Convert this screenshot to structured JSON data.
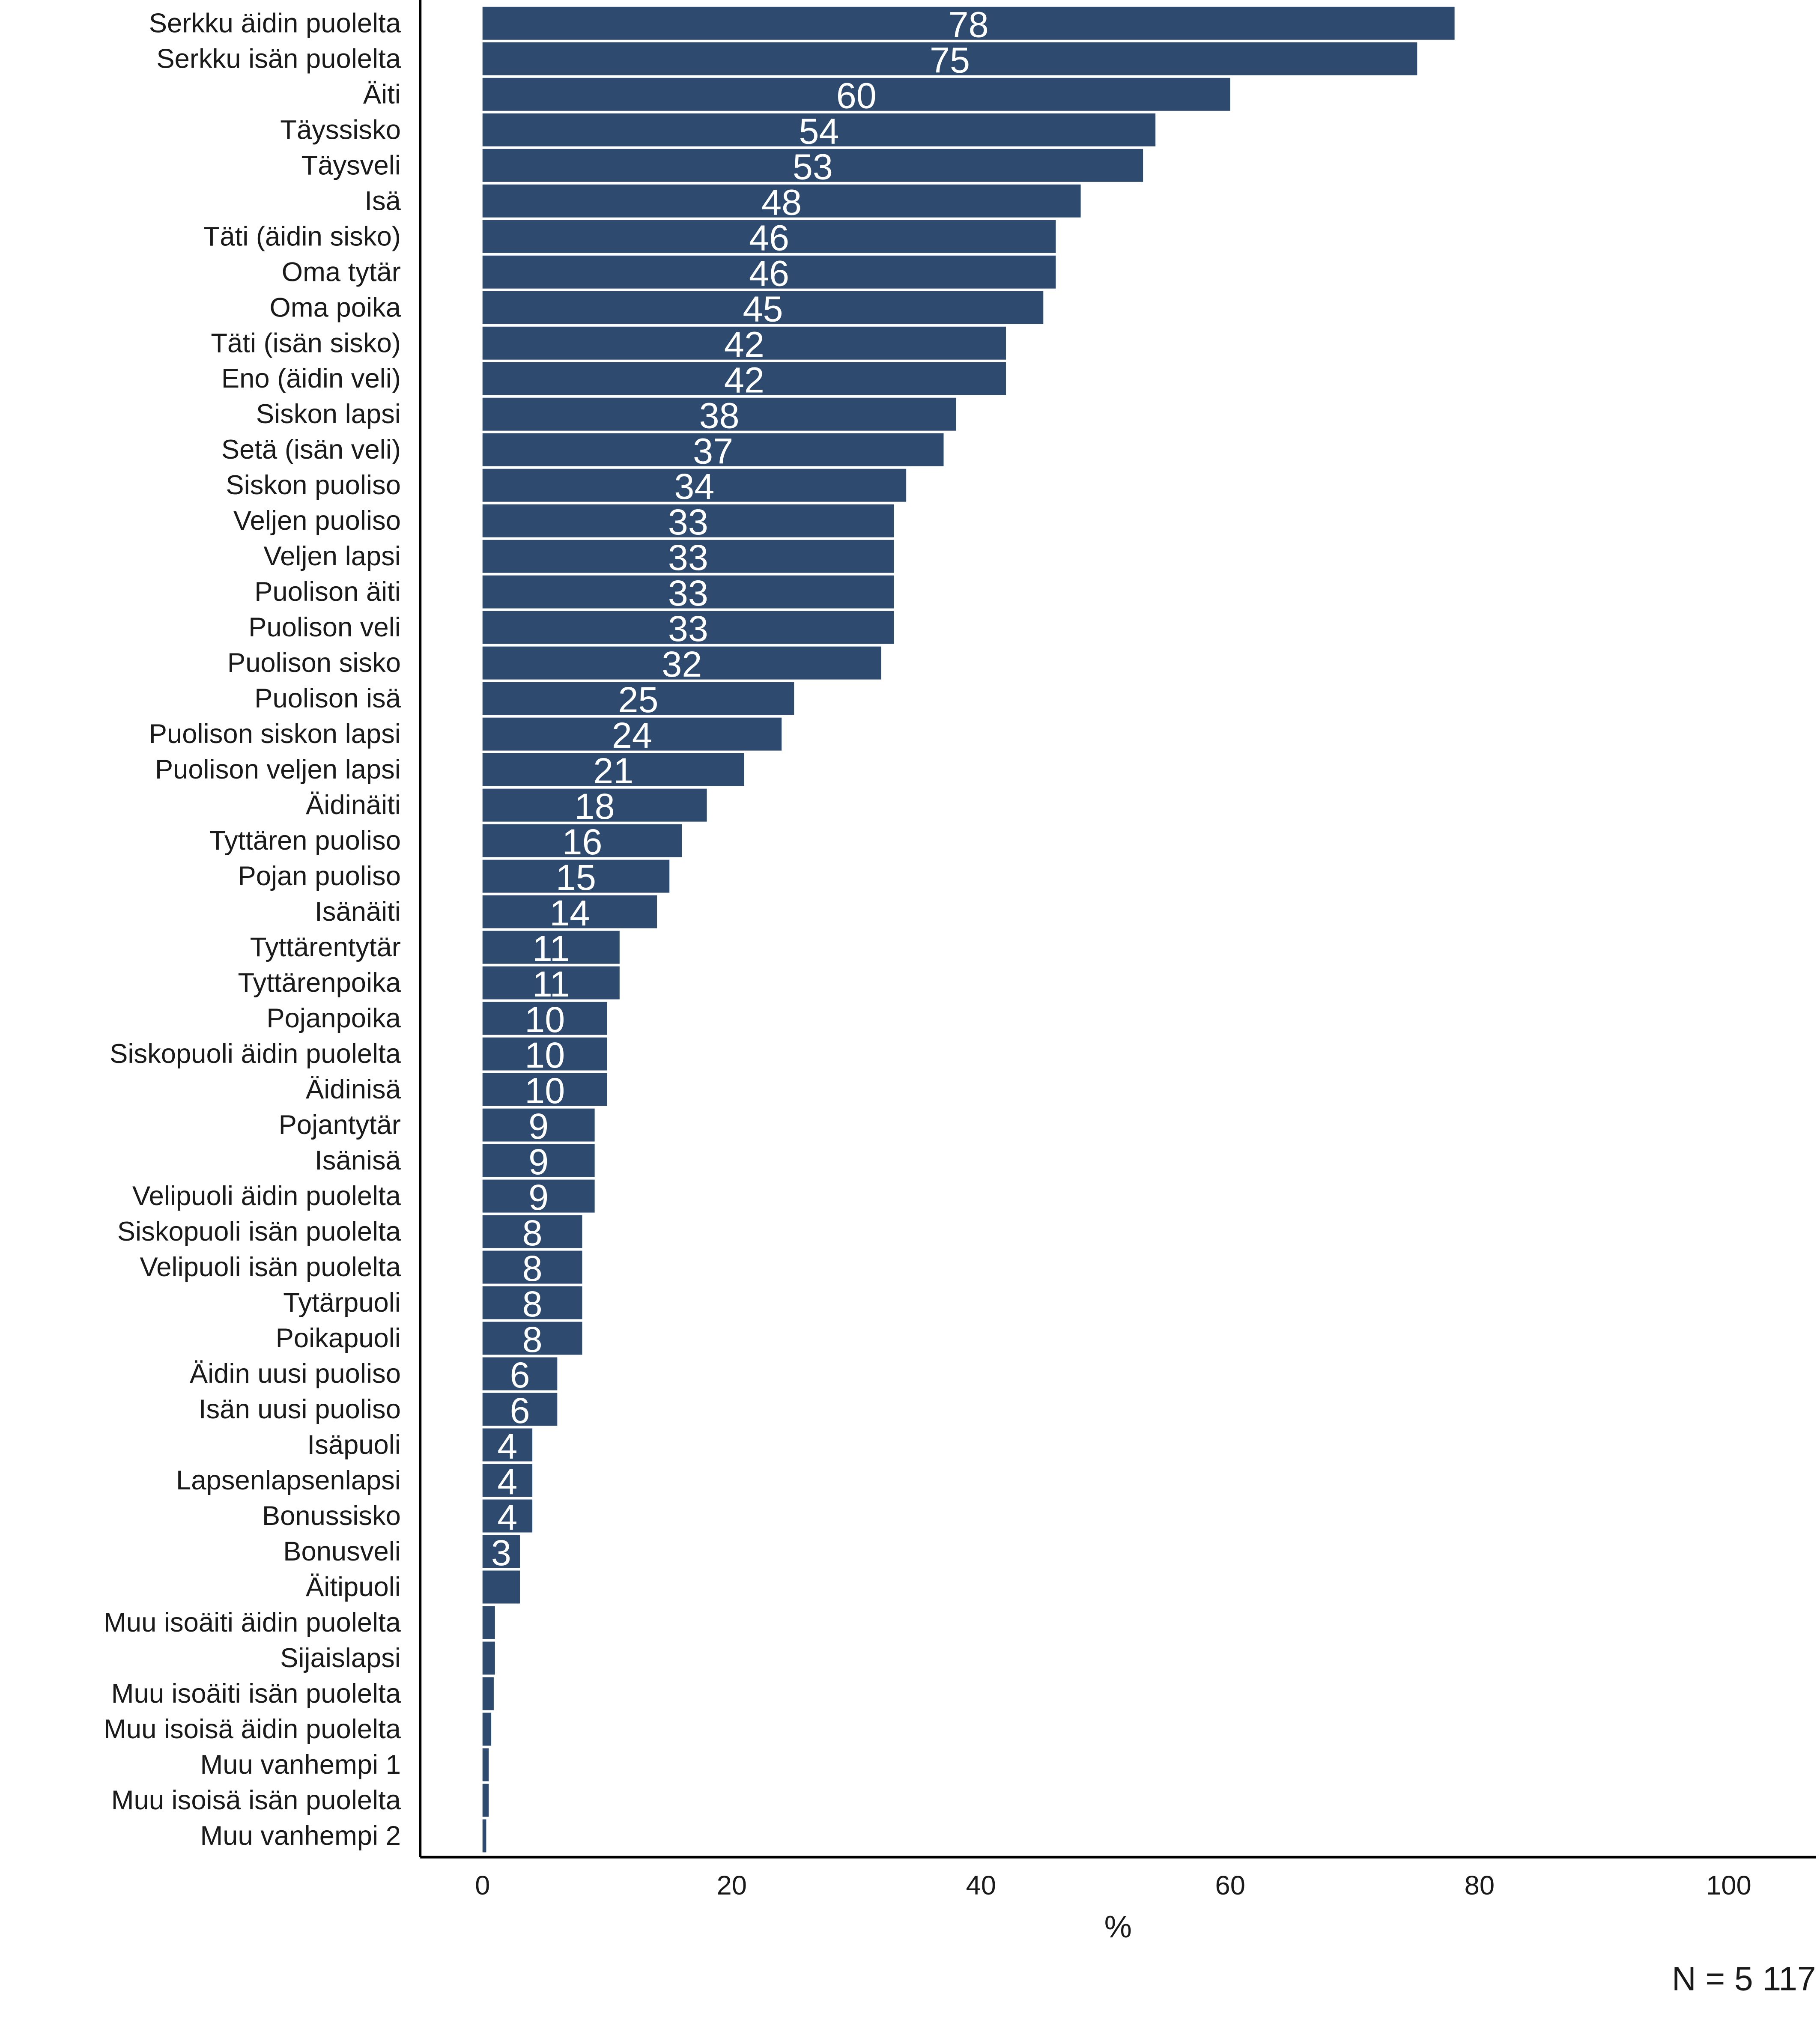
{
  "chart_data": {
    "type": "bar",
    "orientation": "horizontal",
    "color": "#2e4a6f",
    "x_label": "%",
    "note": "N = 5 117",
    "categories": [
      "Serkku äidin puolelta",
      "Serkku isän puolelta",
      "Äiti",
      "Täyssisko",
      "Täysveli",
      "Isä",
      "Täti (äidin sisko)",
      "Oma tytär",
      "Oma poika",
      "Täti (isän sisko)",
      "Eno (äidin veli)",
      "Siskon lapsi",
      "Setä (isän veli)",
      "Siskon puoliso",
      "Veljen puoliso",
      "Veljen lapsi",
      "Puolison äiti",
      "Puolison veli",
      "Puolison sisko",
      "Puolison isä",
      "Puolison siskon lapsi",
      "Puolison veljen lapsi",
      "Äidinäiti",
      "Tyttären puoliso",
      "Pojan puoliso",
      "Isänäiti",
      "Tyttärentytär",
      "Tyttärenpoika",
      "Pojanpoika",
      "Siskopuoli äidin puolelta",
      "Äidinisä",
      "Pojantytär",
      "Isänisä",
      "Velipuoli äidin puolelta",
      "Siskopuoli isän puolelta",
      "Velipuoli isän puolelta",
      "Tytärpuoli",
      "Poikapuoli",
      "Äidin uusi puoliso",
      "Isän uusi puoliso",
      "Isäpuoli",
      "Lapsenlapsenlapsi",
      "Bonussisko",
      "Bonusveli",
      "Äitipuoli",
      "Muu isoäiti äidin puolelta",
      "Sijaislapsi",
      "Muu isoäiti isän puolelta",
      "Muu isoisä äidin puolelta",
      "Muu vanhempi 1",
      "Muu isoisä isän puolelta",
      "Muu vanhempi 2"
    ],
    "values": [
      78,
      75,
      60,
      54,
      53,
      48,
      46,
      46,
      45,
      42,
      42,
      38,
      37,
      34,
      33,
      33,
      33,
      33,
      32,
      25,
      24,
      21,
      18,
      16,
      15,
      14,
      11,
      11,
      10,
      10,
      10,
      9,
      9,
      9,
      8,
      8,
      8,
      8,
      6,
      6,
      4,
      4,
      4,
      3,
      3.0,
      1.0,
      1.0,
      0.9,
      0.7,
      0.5,
      0.5,
      0.3
    ],
    "value_labels": [
      "78",
      "75",
      "60",
      "54",
      "53",
      "48",
      "46",
      "46",
      "45",
      "42",
      "42",
      "38",
      "37",
      "34",
      "33",
      "33",
      "33",
      "33",
      "32",
      "25",
      "24",
      "21",
      "18",
      "16",
      "15",
      "14",
      "11",
      "11",
      "10",
      "10",
      "10",
      "9",
      "9",
      "9",
      "8",
      "8",
      "8",
      "8",
      "6",
      "6",
      "4",
      "4",
      "4",
      "3",
      null,
      null,
      null,
      null,
      null,
      null,
      null,
      null
    ],
    "xlim": [
      -5,
      107
    ],
    "xticks": [
      0,
      20,
      40,
      60,
      80,
      100
    ]
  }
}
